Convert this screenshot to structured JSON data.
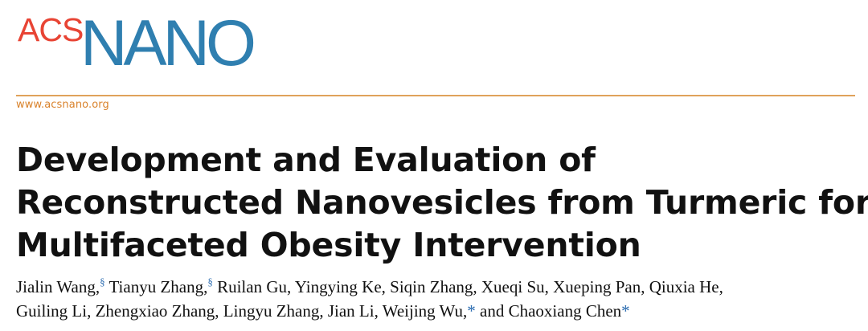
{
  "journal": {
    "logo_part1": "ACS",
    "logo_part2": "NANO",
    "logo_color_red": "#e84434",
    "logo_color_blue": "#2f7fb0",
    "url": "www.acsnano.org",
    "accent_color": "#e0a25b"
  },
  "article": {
    "title_lines": [
      "Development and Evaluation of",
      "Reconstructed Nanovesicles from Turmeric for",
      "Multifaceted Obesity Intervention"
    ],
    "authors_line1": [
      {
        "name": "Jialin Wang,",
        "mark": "§"
      },
      {
        "name": " Tianyu Zhang,",
        "mark": "§"
      },
      {
        "name": " Ruilan Gu, Yingying Ke, Siqin Zhang, Xueqi Su, Xueping Pan, Qiuxia He,",
        "mark": ""
      }
    ],
    "authors_line2": [
      {
        "name": "Guiling Li, Zhengxiao Zhang, Lingyu Zhang, Jian Li, Weijing Wu,",
        "mark": "*"
      },
      {
        "name": " and Chaoxiang Chen",
        "mark": "*"
      }
    ]
  }
}
